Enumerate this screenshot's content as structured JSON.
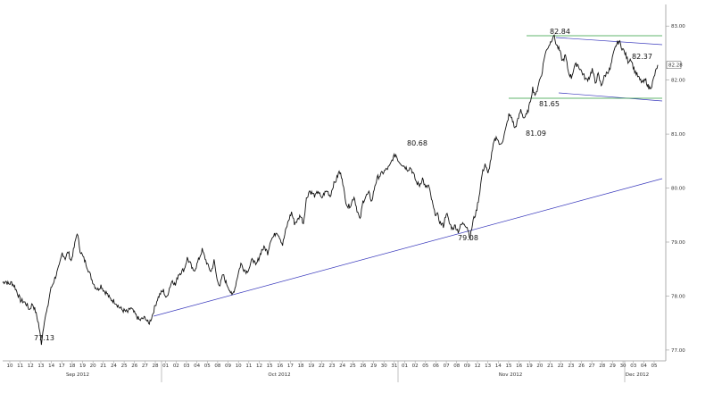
{
  "chart_data": {
    "type": "line",
    "x_tick_labels": [
      "10",
      "11",
      "12",
      "13",
      "14",
      "17",
      "18",
      "19",
      "20",
      "21",
      "24",
      "25",
      "26",
      "27",
      "28",
      "01",
      "02",
      "03",
      "04",
      "05",
      "08",
      "09",
      "10",
      "11",
      "12",
      "15",
      "16",
      "17",
      "18",
      "19",
      "22",
      "23",
      "24",
      "25",
      "26",
      "29",
      "30",
      "31",
      "01",
      "02",
      "05",
      "06",
      "07",
      "08",
      "09",
      "12",
      "13",
      "14",
      "15",
      "16",
      "19",
      "20",
      "21",
      "22",
      "23",
      "26",
      "27",
      "28",
      "29",
      "30",
      "03",
      "04",
      "05"
    ],
    "month_labels": [
      "Sep 2012",
      "Oct 2012",
      "Nov 2012",
      "Dec 2012"
    ],
    "y_ticks": [
      "77.00",
      "78.00",
      "79.00",
      "80.00",
      "81.00",
      "82.00",
      "83.00"
    ],
    "ylim": [
      76.8,
      83.4
    ],
    "last_price_label": "82.28",
    "series": [
      {
        "values": [
          78.25,
          78.28,
          78.22,
          78.25,
          78.18,
          78.05,
          77.92,
          77.9,
          77.85,
          77.75,
          77.86,
          77.72,
          77.5,
          77.13,
          77.55,
          77.75,
          78.1,
          78.25,
          78.4,
          78.55,
          78.8,
          78.7,
          78.82,
          78.65,
          78.9,
          79.18,
          78.85,
          78.72,
          78.6,
          78.45,
          78.3,
          78.18,
          78.12,
          78.2,
          78.1,
          78.05,
          77.95,
          77.92,
          77.88,
          77.8,
          77.75,
          77.72,
          77.7,
          77.78,
          77.7,
          77.62,
          77.55,
          77.58,
          77.6,
          77.48,
          77.6,
          77.78,
          77.95,
          78.05,
          78.1,
          77.95,
          78.15,
          78.3,
          78.2,
          78.4,
          78.45,
          78.5,
          78.7,
          78.6,
          78.45,
          78.55,
          78.7,
          78.85,
          78.7,
          78.55,
          78.45,
          78.65,
          78.3,
          78.2,
          78.4,
          78.25,
          78.15,
          78.0,
          78.15,
          78.4,
          78.6,
          78.5,
          78.45,
          78.55,
          78.7,
          78.55,
          78.7,
          78.85,
          78.9,
          78.8,
          79.05,
          79.1,
          79.2,
          79.1,
          78.95,
          79.2,
          79.4,
          79.55,
          79.35,
          79.4,
          79.5,
          79.35,
          79.8,
          79.95,
          79.9,
          79.85,
          79.95,
          79.8,
          79.9,
          79.95,
          79.85,
          80.05,
          80.15,
          80.3,
          80.2,
          79.8,
          79.65,
          79.7,
          79.85,
          79.6,
          79.4,
          79.75,
          79.85,
          79.9,
          79.75,
          80.05,
          80.2,
          80.25,
          80.3,
          80.35,
          80.4,
          80.55,
          80.62,
          80.5,
          80.45,
          80.4,
          80.35,
          80.38,
          80.25,
          80.1,
          80.05,
          80.18,
          80.0,
          80.05,
          79.8,
          79.55,
          79.5,
          79.35,
          79.3,
          79.55,
          79.35,
          79.25,
          79.3,
          79.2,
          79.32,
          79.35,
          79.28,
          79.08,
          79.4,
          79.55,
          79.85,
          80.25,
          80.45,
          80.25,
          80.55,
          80.85,
          80.95,
          80.78,
          80.9,
          81.1,
          81.35,
          81.3,
          81.1,
          81.25,
          81.45,
          81.3,
          81.35,
          81.55,
          81.85,
          81.7,
          81.95,
          82.1,
          82.45,
          82.6,
          82.7,
          82.84,
          82.65,
          82.55,
          82.35,
          82.45,
          82.15,
          82.05,
          82.25,
          82.3,
          82.2,
          82.1,
          82.0,
          82.05,
          82.2,
          81.95,
          82.1,
          81.9,
          82.05,
          82.15,
          82.2,
          82.45,
          82.65,
          82.72,
          82.6,
          82.5,
          82.35,
          82.4,
          82.2,
          82.1,
          82.0,
          81.95,
          82.0,
          81.85,
          81.9,
          82.1,
          82.28
        ]
      }
    ],
    "annotations": [
      {
        "text": "77.13",
        "value": 77.13
      },
      {
        "text": "80.68",
        "value": 80.68
      },
      {
        "text": "79.08",
        "value": 79.08
      },
      {
        "text": "81.09",
        "value": 81.09
      },
      {
        "text": "81.65",
        "value": 81.65
      },
      {
        "text": "82.84",
        "value": 82.84
      },
      {
        "text": "82.37",
        "value": 82.37
      }
    ],
    "grid": false,
    "legend": "none"
  }
}
